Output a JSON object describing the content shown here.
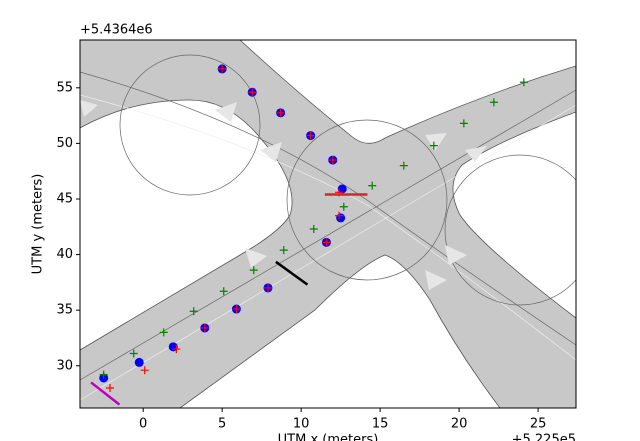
{
  "chart_data": {
    "type": "scatter",
    "xlabel": "UTM x (meters)",
    "ylabel": "UTM y (meters)",
    "x_offset_label": "+5.225e5",
    "y_offset_label": "+5.4364e6",
    "xlim": [
      -4,
      27.4
    ],
    "ylim": [
      26.2,
      59.3
    ],
    "xticks": [
      0,
      5,
      10,
      15,
      20,
      25
    ],
    "yticks": [
      30,
      35,
      40,
      45,
      50,
      55
    ],
    "series": [
      {
        "color": "#0000ff",
        "marker": "dot",
        "x": [
          5,
          6.9,
          8.7,
          10.6,
          12.0,
          12.6,
          12.5,
          11.6,
          7.9,
          5.9,
          3.9,
          1.9,
          -0.25,
          -2.5
        ],
        "y": [
          56.7,
          54.6,
          52.75,
          50.7,
          48.5,
          45.9,
          43.3,
          41.1,
          37.0,
          35.1,
          33.4,
          31.7,
          30.3,
          28.9
        ]
      },
      {
        "color": "#ff0000",
        "marker": "plus",
        "x": [
          5,
          6.9,
          8.7,
          10.6,
          12.0,
          12.4,
          12.4,
          11.6,
          7.9,
          5.9,
          3.9,
          2.1,
          0.1,
          -2.1
        ],
        "y": [
          56.7,
          54.6,
          52.75,
          50.7,
          48.5,
          45.6,
          43.5,
          41.1,
          37.0,
          35.1,
          33.4,
          31.5,
          29.6,
          28.0
        ]
      },
      {
        "color": "#008000",
        "marker": "plus",
        "x": [
          -2.5,
          -0.6,
          1.3,
          3.2,
          5.1,
          7.0,
          8.9,
          10.8,
          12.7,
          14.5,
          16.5,
          18.4,
          20.3,
          22.2,
          24.1
        ],
        "y": [
          29.2,
          31.1,
          33.0,
          34.9,
          36.7,
          38.6,
          40.4,
          42.3,
          44.3,
          46.2,
          48.0,
          49.8,
          51.8,
          53.7,
          55.5
        ]
      },
      {
        "color": "#d62728",
        "marker": "segment",
        "x": [
          11.5,
          14.2
        ],
        "y": [
          45.4,
          45.4
        ]
      },
      {
        "color": "#000000",
        "marker": "segment",
        "x": [
          8.4,
          10.4
        ],
        "y": [
          39.35,
          37.3
        ]
      },
      {
        "color": "#bf00bf",
        "marker": "segment",
        "x": [
          -3.3,
          -1.5
        ],
        "y": [
          28.5,
          26.5
        ]
      }
    ]
  }
}
